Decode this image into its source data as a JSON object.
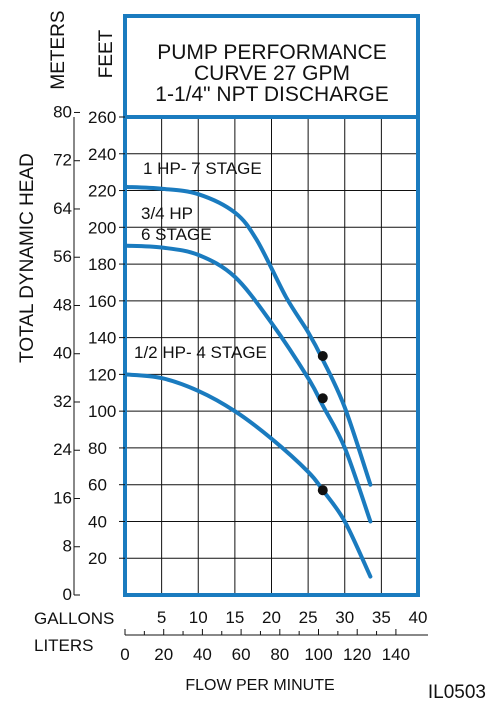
{
  "chart_data": {
    "type": "line",
    "title_lines": [
      "PUMP PERFORMANCE",
      "CURVE 27 GPM",
      "1-1/4\" NPT DISCHARGE"
    ],
    "ylabel": "TOTAL DYNAMIC HEAD",
    "y_feet_label": "FEET",
    "y_meters_label": "METERS",
    "xlabel": "FLOW PER MINUTE",
    "x_gallons_label": "GALLONS",
    "x_liters_label": "LITERS",
    "code": "IL0503",
    "ylim_feet": [
      0,
      260
    ],
    "xlim_gpm": [
      0,
      40
    ],
    "grid": true,
    "y_feet_ticks": [
      "260",
      "240",
      "220",
      "200",
      "180",
      "160",
      "140",
      "120",
      "100",
      "80",
      "60",
      "40",
      "20"
    ],
    "y_meter_ticks": [
      "80",
      "72",
      "64",
      "56",
      "48",
      "40",
      "32",
      "24",
      "16",
      "8",
      "0"
    ],
    "x_gallon_ticks": [
      "5",
      "10",
      "15",
      "20",
      "25",
      "30",
      "35",
      "40"
    ],
    "x_liter_ticks": [
      "0",
      "20",
      "40",
      "60",
      "80",
      "100",
      "120",
      "140"
    ],
    "series": [
      {
        "name": "1 HP- 7 STAGE",
        "x": [
          0,
          5,
          10,
          15,
          18,
          22,
          25,
          27,
          30,
          33.5
        ],
        "y": [
          222,
          221,
          218,
          208,
          193,
          162,
          143,
          128,
          102,
          60
        ],
        "marker": {
          "x": 27,
          "y": 130
        }
      },
      {
        "name": "3/4 HP 6 STAGE",
        "x": [
          0,
          5,
          10,
          15,
          20,
          25,
          27,
          30,
          33.5
        ],
        "y": [
          190,
          189,
          185,
          173,
          148,
          118,
          103,
          80,
          40
        ],
        "marker": {
          "x": 27,
          "y": 107
        }
      },
      {
        "name": "1/2 HP- 4 STAGE",
        "x": [
          0,
          5,
          10,
          15,
          20,
          25,
          27,
          30,
          33.5
        ],
        "y": [
          120,
          118,
          111,
          100,
          85,
          67,
          57,
          40,
          10
        ],
        "marker": {
          "x": 27,
          "y": 57
        }
      }
    ],
    "series_labels": [
      "1 HP- 7 STAGE",
      "3/4 HP",
      "6 STAGE",
      "1/2 HP- 4 STAGE"
    ],
    "colors": {
      "frame": "#1a7bbf",
      "curve": "#1a7bbf",
      "grid": "#111111",
      "marker": "#111111"
    }
  }
}
